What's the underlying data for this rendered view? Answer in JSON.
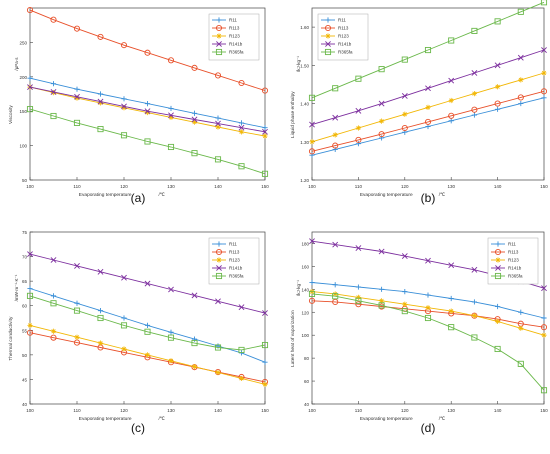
{
  "chart_data": [
    {
      "type": "line",
      "panel_label": "(a)",
      "xlabel": "Evaporating temperature",
      "xunit": "/℃",
      "ylabel": "Viscosity",
      "yunit": "/μPa·s",
      "x": [
        100,
        105,
        110,
        115,
        120,
        125,
        130,
        135,
        140,
        145,
        150
      ],
      "xticks": [
        100,
        110,
        120,
        130,
        140,
        150
      ],
      "xlim": [
        100,
        150
      ],
      "yticks": [
        50,
        100,
        150,
        200,
        250
      ],
      "ylim": [
        50,
        300
      ],
      "legend": "top-right",
      "series": [
        {
          "name": "R11",
          "color": "#3a8fd8",
          "marker": "plus",
          "values": [
            198,
            190,
            182,
            175,
            168,
            161,
            154,
            147,
            140,
            133,
            126
          ]
        },
        {
          "name": "R113",
          "color": "#e8502a",
          "marker": "circle",
          "values": [
            297,
            283,
            270,
            258,
            246,
            235,
            224,
            213,
            202,
            191,
            180
          ]
        },
        {
          "name": "R123",
          "color": "#f2b705",
          "marker": "star",
          "values": [
            185,
            177,
            169,
            162,
            155,
            148,
            141,
            134,
            127,
            120,
            114
          ]
        },
        {
          "name": "R141b",
          "color": "#7c2e9e",
          "marker": "cross",
          "values": [
            185,
            178,
            171,
            164,
            157,
            150,
            144,
            138,
            132,
            126,
            120
          ]
        },
        {
          "name": "R365fa",
          "color": "#6ab84a",
          "marker": "square",
          "values": [
            153,
            143,
            133,
            124,
            115,
            106,
            98,
            89,
            80,
            70,
            59
          ]
        }
      ]
    },
    {
      "type": "line",
      "panel_label": "(b)",
      "xlabel": "Evaporating temperature",
      "xunit": "/℃",
      "ylabel": "Liquid phase enthalpy",
      "yunit": "/kJ·kg⁻¹",
      "x": [
        100,
        105,
        110,
        115,
        120,
        125,
        130,
        135,
        140,
        145,
        150
      ],
      "xticks": [
        100,
        110,
        120,
        130,
        140,
        150
      ],
      "xlim": [
        100,
        150
      ],
      "yticks": [
        1.2,
        1.3,
        1.4,
        1.5,
        1.6
      ],
      "ytick_labels": [
        "1.20",
        "1.30",
        "1.40",
        "1.50",
        "1.60"
      ],
      "ylim": [
        1.2,
        1.65
      ],
      "legend": "top-left",
      "series": [
        {
          "name": "R11",
          "color": "#3a8fd8",
          "marker": "plus",
          "values": [
            1.265,
            1.28,
            1.295,
            1.31,
            1.325,
            1.34,
            1.355,
            1.37,
            1.385,
            1.4,
            1.415
          ]
        },
        {
          "name": "R113",
          "color": "#e8502a",
          "marker": "circle",
          "values": [
            1.275,
            1.29,
            1.305,
            1.32,
            1.336,
            1.352,
            1.368,
            1.384,
            1.4,
            1.416,
            1.432
          ]
        },
        {
          "name": "R123",
          "color": "#f2b705",
          "marker": "star",
          "values": [
            1.3,
            1.318,
            1.336,
            1.354,
            1.372,
            1.39,
            1.408,
            1.426,
            1.444,
            1.462,
            1.48
          ]
        },
        {
          "name": "R141b",
          "color": "#7c2e9e",
          "marker": "cross",
          "values": [
            1.345,
            1.363,
            1.381,
            1.4,
            1.42,
            1.44,
            1.46,
            1.48,
            1.5,
            1.52,
            1.54
          ]
        },
        {
          "name": "R365fa",
          "color": "#6ab84a",
          "marker": "square",
          "values": [
            1.415,
            1.44,
            1.465,
            1.49,
            1.515,
            1.54,
            1.565,
            1.59,
            1.615,
            1.64,
            1.665
          ]
        }
      ]
    },
    {
      "type": "line",
      "panel_label": "(c)",
      "xlabel": "Evaporating temperature",
      "xunit": "/℃",
      "ylabel": "Thermal conductivity",
      "yunit": "/mW·m⁻¹·K⁻¹",
      "x": [
        100,
        105,
        110,
        115,
        120,
        125,
        130,
        135,
        140,
        145,
        150
      ],
      "xticks": [
        100,
        110,
        120,
        130,
        140,
        150
      ],
      "xlim": [
        100,
        150
      ],
      "yticks": [
        40,
        45,
        50,
        55,
        60,
        65,
        70,
        75
      ],
      "ylim": [
        40,
        75
      ],
      "legend": "top-right",
      "series": [
        {
          "name": "R11",
          "color": "#3a8fd8",
          "marker": "plus",
          "values": [
            63.5,
            62,
            60.5,
            59,
            57.5,
            56,
            54.6,
            53.2,
            51.8,
            50.4,
            48.5
          ]
        },
        {
          "name": "R113",
          "color": "#e8502a",
          "marker": "circle",
          "values": [
            54.5,
            53.5,
            52.5,
            51.5,
            50.5,
            49.5,
            48.5,
            47.5,
            46.5,
            45.5,
            44.5
          ]
        },
        {
          "name": "R123",
          "color": "#f2b705",
          "marker": "star",
          "values": [
            56,
            54.8,
            53.6,
            52.4,
            51.2,
            50,
            48.8,
            47.6,
            46.4,
            45.2,
            44
          ]
        },
        {
          "name": "R141b",
          "color": "#7c2e9e",
          "marker": "cross",
          "values": [
            70.5,
            69.3,
            68.1,
            66.9,
            65.7,
            64.5,
            63.3,
            62.1,
            60.9,
            59.7,
            58.5
          ]
        },
        {
          "name": "R365fa",
          "color": "#6ab84a",
          "marker": "square",
          "values": [
            62,
            60.5,
            59,
            57.5,
            56,
            54.7,
            53.5,
            52.4,
            51.5,
            51,
            52
          ]
        }
      ]
    },
    {
      "type": "line",
      "panel_label": "(d)",
      "xlabel": "Evaporating temperature",
      "xunit": "/℃",
      "ylabel": "Latent heat of vaporization",
      "yunit": "/kJ·kg⁻¹",
      "x": [
        100,
        105,
        110,
        115,
        120,
        125,
        130,
        135,
        140,
        145,
        150
      ],
      "xticks": [
        100,
        110,
        120,
        130,
        140,
        150
      ],
      "xlim": [
        100,
        150
      ],
      "yticks": [
        40,
        60,
        80,
        100,
        120,
        140,
        160,
        180
      ],
      "ylim": [
        40,
        190
      ],
      "legend": "top-right",
      "series": [
        {
          "name": "R11",
          "color": "#3a8fd8",
          "marker": "plus",
          "values": [
            146,
            144,
            142,
            140,
            138,
            135,
            132,
            129,
            125,
            120,
            115
          ]
        },
        {
          "name": "R113",
          "color": "#e8502a",
          "marker": "circle",
          "values": [
            130,
            129,
            127,
            125,
            123,
            121,
            119,
            117,
            114,
            110,
            107
          ]
        },
        {
          "name": "R123",
          "color": "#f2b705",
          "marker": "star",
          "values": [
            138,
            136,
            133,
            130,
            127,
            124,
            121,
            117,
            112,
            106,
            100
          ]
        },
        {
          "name": "R141b",
          "color": "#7c2e9e",
          "marker": "cross",
          "values": [
            182,
            179,
            176,
            173,
            169,
            165,
            161,
            157,
            152,
            147,
            141
          ]
        },
        {
          "name": "R365fa",
          "color": "#6ab84a",
          "marker": "square",
          "values": [
            136,
            134,
            130,
            126,
            121,
            115,
            107,
            98,
            88,
            75,
            52
          ]
        }
      ]
    }
  ]
}
